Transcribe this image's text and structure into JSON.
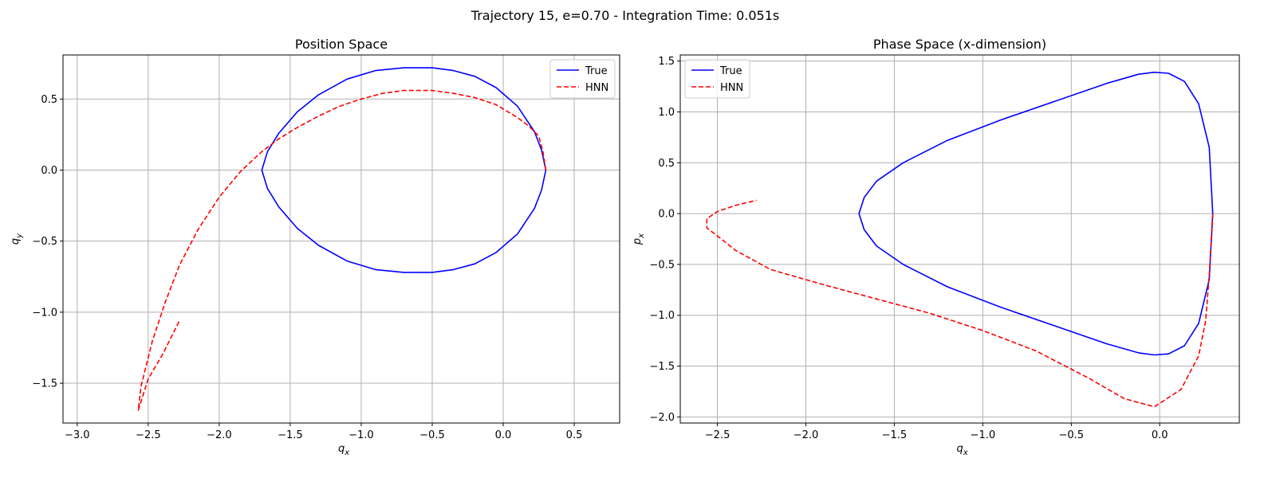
{
  "suptitle": "Trajectory 15, e=0.70 - Integration Time: 0.051s",
  "colors": {
    "true": "#0000ff",
    "hnn": "#ff0000",
    "grid": "#b0b0b0",
    "axes": "#000000"
  },
  "chart_data": [
    {
      "type": "line",
      "title": "Position Space",
      "xlabel": "q_x",
      "ylabel": "q_y",
      "xlim": [
        -3.1,
        0.82
      ],
      "ylim": [
        -1.78,
        0.81
      ],
      "xticks": [
        -3.0,
        -2.5,
        -2.0,
        -1.5,
        -1.0,
        -0.5,
        0.0,
        0.5
      ],
      "xtick_labels": [
        "−3.0",
        "−2.5",
        "−2.0",
        "−1.5",
        "−1.0",
        "−0.5",
        "0.0",
        "0.5"
      ],
      "yticks": [
        -1.5,
        -1.0,
        -0.5,
        0.0,
        0.5
      ],
      "ytick_labels": [
        "−1.5",
        "−1.0",
        "−0.5",
        "0.0",
        "0.5"
      ],
      "grid": true,
      "legend_position": "top-right",
      "series": [
        {
          "name": "True",
          "style": "solid",
          "x": [
            0.3,
            0.27,
            0.22,
            0.1,
            -0.05,
            -0.2,
            -0.35,
            -0.5,
            -0.7,
            -0.9,
            -1.1,
            -1.3,
            -1.45,
            -1.58,
            -1.66,
            -1.7,
            -1.66,
            -1.58,
            -1.45,
            -1.3,
            -1.1,
            -0.9,
            -0.7,
            -0.5,
            -0.35,
            -0.2,
            -0.05,
            0.1,
            0.22,
            0.27,
            0.3
          ],
          "y": [
            0.0,
            0.14,
            0.27,
            0.45,
            0.58,
            0.66,
            0.7,
            0.72,
            0.72,
            0.7,
            0.64,
            0.53,
            0.41,
            0.26,
            0.13,
            0.0,
            -0.13,
            -0.26,
            -0.41,
            -0.53,
            -0.64,
            -0.7,
            -0.72,
            -0.72,
            -0.7,
            -0.66,
            -0.58,
            -0.45,
            -0.27,
            -0.14,
            0.0
          ]
        },
        {
          "name": "HNN",
          "style": "dashed",
          "x": [
            0.3,
            0.28,
            0.25,
            0.18,
            0.1,
            -0.05,
            -0.2,
            -0.35,
            -0.5,
            -0.6,
            -0.7,
            -0.85,
            -1.0,
            -1.15,
            -1.3,
            -1.45,
            -1.58,
            -1.7,
            -1.85,
            -2.0,
            -2.15,
            -2.28,
            -2.38,
            -2.47,
            -2.55,
            -2.57,
            -2.5,
            -2.4,
            -2.28
          ],
          "y": [
            0.0,
            0.13,
            0.24,
            0.31,
            0.37,
            0.46,
            0.51,
            0.54,
            0.56,
            0.56,
            0.56,
            0.54,
            0.5,
            0.45,
            0.38,
            0.3,
            0.22,
            0.13,
            -0.01,
            -0.19,
            -0.42,
            -0.67,
            -0.93,
            -1.2,
            -1.52,
            -1.69,
            -1.47,
            -1.3,
            -1.06
          ]
        }
      ]
    },
    {
      "type": "line",
      "title": "Phase Space (x-dimension)",
      "xlabel": "q_x",
      "ylabel": "p_x",
      "xlim": [
        -2.71,
        0.45
      ],
      "ylim": [
        -2.06,
        1.56
      ],
      "xticks": [
        -2.5,
        -2.0,
        -1.5,
        -1.0,
        -0.5,
        0.0
      ],
      "xtick_labels": [
        "−2.5",
        "−2.0",
        "−1.5",
        "−1.0",
        "−0.5",
        "0.0"
      ],
      "yticks": [
        -2.0,
        -1.5,
        -1.0,
        -0.5,
        0.0,
        0.5,
        1.0,
        1.5
      ],
      "ytick_labels": [
        "−2.0",
        "−1.5",
        "−1.0",
        "−0.5",
        "0.0",
        "0.5",
        "1.0",
        "1.5"
      ],
      "grid": true,
      "legend_position": "top-left",
      "series": [
        {
          "name": "True",
          "style": "solid",
          "x": [
            0.3,
            0.28,
            0.22,
            0.14,
            0.05,
            -0.03,
            -0.12,
            -0.3,
            -0.6,
            -0.9,
            -1.2,
            -1.45,
            -1.6,
            -1.67,
            -1.7,
            -1.67,
            -1.6,
            -1.45,
            -1.2,
            -0.9,
            -0.6,
            -0.3,
            -0.12,
            -0.03,
            0.05,
            0.14,
            0.22,
            0.28,
            0.3
          ],
          "y": [
            0.0,
            0.65,
            1.08,
            1.3,
            1.38,
            1.39,
            1.37,
            1.28,
            1.1,
            0.92,
            0.72,
            0.5,
            0.32,
            0.16,
            0.0,
            -0.16,
            -0.32,
            -0.5,
            -0.72,
            -0.92,
            -1.1,
            -1.28,
            -1.37,
            -1.39,
            -1.38,
            -1.3,
            -1.08,
            -0.65,
            0.0
          ]
        },
        {
          "name": "HNN",
          "style": "dashed",
          "x": [
            0.3,
            0.28,
            0.26,
            0.22,
            0.12,
            -0.03,
            -0.2,
            -0.4,
            -0.7,
            -1.0,
            -1.3,
            -1.6,
            -1.9,
            -2.2,
            -2.4,
            -2.5,
            -2.56,
            -2.56,
            -2.5,
            -2.4,
            -2.28
          ],
          "y": [
            0.0,
            -0.6,
            -1.05,
            -1.4,
            -1.73,
            -1.9,
            -1.82,
            -1.62,
            -1.35,
            -1.15,
            -0.98,
            -0.84,
            -0.7,
            -0.55,
            -0.36,
            -0.22,
            -0.14,
            -0.05,
            0.02,
            0.08,
            0.13
          ]
        }
      ]
    }
  ]
}
